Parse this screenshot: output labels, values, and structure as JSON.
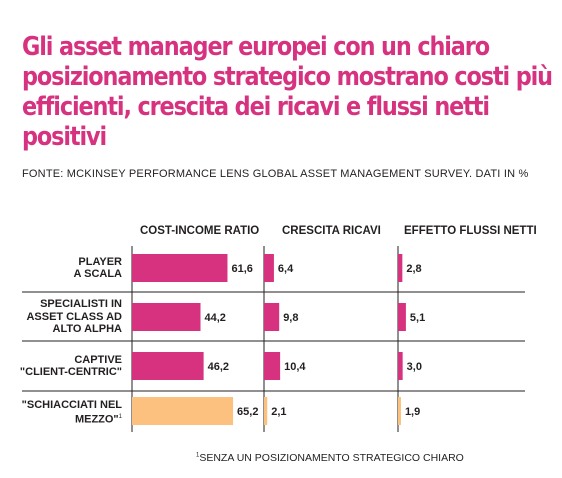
{
  "title": "Gli asset manager europei con un chiaro posizionamento strategico mostrano costi più efficienti, crescita dei ricavi e flussi netti positivi",
  "source": "FONTE: MCKINSEY PERFORMANCE LENS GLOBAL ASSET MANAGEMENT SURVEY. DATI IN %",
  "footnote_marker": "1",
  "footnote": "SENZA UN POSIZIONAMENTO STRATEGICO CHIARO",
  "colors": {
    "title": "#d6327f",
    "bar": "#d6327f",
    "bar_highlight": "#fcc17e",
    "text": "#231f20",
    "divider": "#231f20"
  },
  "chart_data": {
    "type": "bar",
    "orientation": "horizontal",
    "categories": [
      "PLAYER A SCALA",
      "SPECIALISTI IN ASSET CLASS AD ALTO ALPHA",
      "CAPTIVE \"CLIENT-CENTRIC\"",
      "\"SCHIACCIATI NEL MEZZO\""
    ],
    "category_lines": [
      [
        "PLAYER",
        "A SCALA"
      ],
      [
        "SPECIALISTI IN",
        "ASSET CLASS AD",
        "ALTO ALPHA"
      ],
      [
        "CAPTIVE",
        "\"CLIENT-CENTRIC\""
      ],
      [
        "\"SCHIACCIATI NEL",
        "MEZZO\""
      ]
    ],
    "category_footnote": [
      null,
      null,
      null,
      "1"
    ],
    "series": [
      {
        "name": "COST-INCOME RATIO",
        "values": [
          61.6,
          44.2,
          46.2,
          65.2
        ],
        "labels": [
          "61,6",
          "44,2",
          "46,2",
          "65,2"
        ]
      },
      {
        "name": "CRESCITA RICAVI",
        "values": [
          6.4,
          9.8,
          10.4,
          2.1
        ],
        "labels": [
          "6,4",
          "9,8",
          "10,4",
          "2,1"
        ]
      },
      {
        "name": "EFFETTO FLUSSI NETTI",
        "values": [
          2.8,
          5.1,
          3.0,
          1.9
        ],
        "labels": [
          "2,8",
          "5,1",
          "3,0",
          "1,9"
        ]
      }
    ],
    "highlight_category_index": 3,
    "xlabel": "",
    "ylabel": ""
  }
}
